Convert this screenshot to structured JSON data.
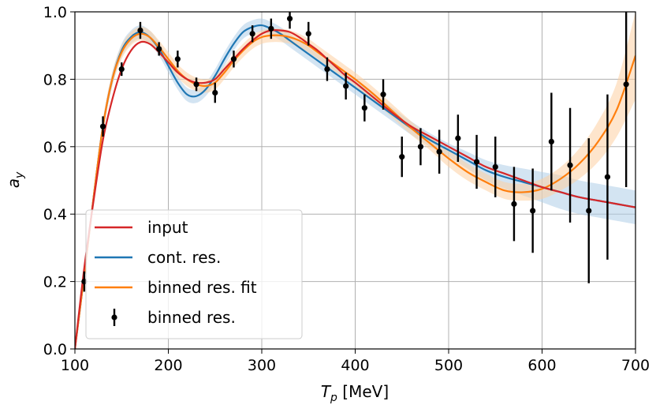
{
  "chart_data": {
    "type": "line",
    "xlabel": "T_p [MeV]",
    "ylabel": "a_y",
    "xlim": [
      100,
      700
    ],
    "ylim": [
      0.0,
      1.0
    ],
    "xticks": [
      100,
      200,
      300,
      400,
      500,
      600,
      700
    ],
    "yticks": [
      0.0,
      0.2,
      0.4,
      0.6,
      0.8,
      1.0
    ],
    "xtick_labels": [
      "100",
      "200",
      "300",
      "400",
      "500",
      "600",
      "700"
    ],
    "ytick_labels": [
      "0.0",
      "0.2",
      "0.4",
      "0.6",
      "0.8",
      "1.0"
    ],
    "grid": true,
    "legend_position": "lower-left",
    "series": [
      {
        "name": "input",
        "color": "#d62728",
        "kind": "line",
        "x": [
          100,
          110,
          120,
          130,
          140,
          150,
          160,
          170,
          180,
          190,
          200,
          210,
          220,
          230,
          240,
          250,
          260,
          270,
          280,
          290,
          300,
          310,
          320,
          330,
          340,
          350,
          360,
          370,
          380,
          390,
          400,
          420,
          440,
          460,
          480,
          500,
          520,
          540,
          560,
          580,
          600,
          620,
          640,
          660,
          680,
          700
        ],
        "y": [
          0.0,
          0.24,
          0.44,
          0.62,
          0.74,
          0.83,
          0.885,
          0.91,
          0.905,
          0.88,
          0.85,
          0.82,
          0.8,
          0.79,
          0.79,
          0.8,
          0.83,
          0.86,
          0.89,
          0.915,
          0.935,
          0.945,
          0.945,
          0.94,
          0.925,
          0.905,
          0.885,
          0.86,
          0.835,
          0.81,
          0.79,
          0.745,
          0.7,
          0.66,
          0.63,
          0.6,
          0.57,
          0.54,
          0.52,
          0.5,
          0.48,
          0.465,
          0.45,
          0.44,
          0.43,
          0.42
        ]
      },
      {
        "name": "cont. res.",
        "color": "#1f77b4",
        "kind": "line",
        "band_color": "#aecde8",
        "x": [
          100,
          110,
          120,
          130,
          140,
          150,
          160,
          170,
          180,
          190,
          200,
          210,
          220,
          230,
          240,
          250,
          260,
          270,
          280,
          290,
          300,
          310,
          320,
          330,
          340,
          350,
          360,
          370,
          380,
          390,
          400,
          420,
          440,
          460,
          480,
          500,
          520,
          540,
          560,
          580,
          600,
          620,
          640,
          660,
          680,
          700
        ],
        "y": [
          0.0,
          0.22,
          0.45,
          0.66,
          0.8,
          0.885,
          0.925,
          0.94,
          0.925,
          0.89,
          0.84,
          0.79,
          0.755,
          0.75,
          0.77,
          0.81,
          0.86,
          0.905,
          0.94,
          0.955,
          0.96,
          0.95,
          0.935,
          0.915,
          0.895,
          0.875,
          0.855,
          0.835,
          0.815,
          0.795,
          0.775,
          0.735,
          0.695,
          0.655,
          0.62,
          0.59,
          0.56,
          0.53,
          0.51,
          0.495,
          0.48,
          0.465,
          0.45,
          0.44,
          0.43,
          0.42
        ],
        "band_halfwidth": [
          0.02,
          0.02,
          0.02,
          0.02,
          0.02,
          0.02,
          0.02,
          0.02,
          0.02,
          0.02,
          0.02,
          0.02,
          0.02,
          0.02,
          0.02,
          0.02,
          0.02,
          0.02,
          0.02,
          0.02,
          0.02,
          0.02,
          0.02,
          0.02,
          0.02,
          0.02,
          0.02,
          0.02,
          0.02,
          0.02,
          0.02,
          0.02,
          0.02,
          0.02,
          0.02,
          0.02,
          0.025,
          0.03,
          0.035,
          0.04,
          0.045,
          0.05,
          0.05,
          0.05,
          0.05,
          0.05
        ]
      },
      {
        "name": "binned res. fit",
        "color": "#ff7f0e",
        "kind": "line",
        "band_color": "#fdd0a2",
        "x": [
          100,
          110,
          120,
          130,
          140,
          150,
          160,
          170,
          180,
          190,
          200,
          210,
          220,
          230,
          240,
          250,
          260,
          270,
          280,
          290,
          300,
          310,
          320,
          330,
          340,
          350,
          360,
          370,
          380,
          390,
          400,
          420,
          440,
          460,
          480,
          500,
          520,
          540,
          560,
          580,
          600,
          620,
          640,
          660,
          680,
          700
        ],
        "y": [
          0.0,
          0.22,
          0.45,
          0.66,
          0.8,
          0.88,
          0.92,
          0.935,
          0.925,
          0.895,
          0.86,
          0.825,
          0.8,
          0.785,
          0.78,
          0.79,
          0.82,
          0.855,
          0.885,
          0.91,
          0.925,
          0.93,
          0.93,
          0.925,
          0.915,
          0.9,
          0.88,
          0.86,
          0.84,
          0.82,
          0.8,
          0.755,
          0.705,
          0.655,
          0.61,
          0.565,
          0.525,
          0.495,
          0.47,
          0.465,
          0.475,
          0.505,
          0.55,
          0.615,
          0.71,
          0.87
        ],
        "band_halfwidth": [
          0.02,
          0.02,
          0.02,
          0.02,
          0.02,
          0.02,
          0.02,
          0.02,
          0.02,
          0.02,
          0.02,
          0.02,
          0.02,
          0.02,
          0.02,
          0.02,
          0.02,
          0.02,
          0.02,
          0.02,
          0.02,
          0.02,
          0.02,
          0.02,
          0.02,
          0.02,
          0.02,
          0.02,
          0.02,
          0.02,
          0.02,
          0.02,
          0.02,
          0.02,
          0.02,
          0.025,
          0.025,
          0.025,
          0.025,
          0.025,
          0.03,
          0.035,
          0.045,
          0.06,
          0.08,
          0.13
        ]
      },
      {
        "name": "binned res.",
        "color": "#000000",
        "kind": "errorbar",
        "x": [
          110,
          130,
          150,
          170,
          190,
          210,
          230,
          250,
          270,
          290,
          310,
          330,
          350,
          370,
          390,
          410,
          430,
          450,
          470,
          490,
          510,
          530,
          550,
          570,
          590,
          610,
          630,
          650,
          670,
          690
        ],
        "y": [
          0.2,
          0.66,
          0.83,
          0.945,
          0.89,
          0.86,
          0.785,
          0.76,
          0.86,
          0.935,
          0.95,
          0.98,
          0.935,
          0.83,
          0.78,
          0.715,
          0.755,
          0.57,
          0.6,
          0.585,
          0.625,
          0.555,
          0.54,
          0.43,
          0.41,
          0.615,
          0.545,
          0.41,
          0.51,
          0.785
        ],
        "yerr": [
          0.03,
          0.03,
          0.02,
          0.025,
          0.02,
          0.025,
          0.02,
          0.03,
          0.025,
          0.025,
          0.03,
          0.03,
          0.035,
          0.035,
          0.04,
          0.04,
          0.045,
          0.06,
          0.055,
          0.065,
          0.07,
          0.08,
          0.09,
          0.11,
          0.125,
          0.145,
          0.17,
          0.215,
          0.245,
          0.305
        ]
      }
    ]
  }
}
